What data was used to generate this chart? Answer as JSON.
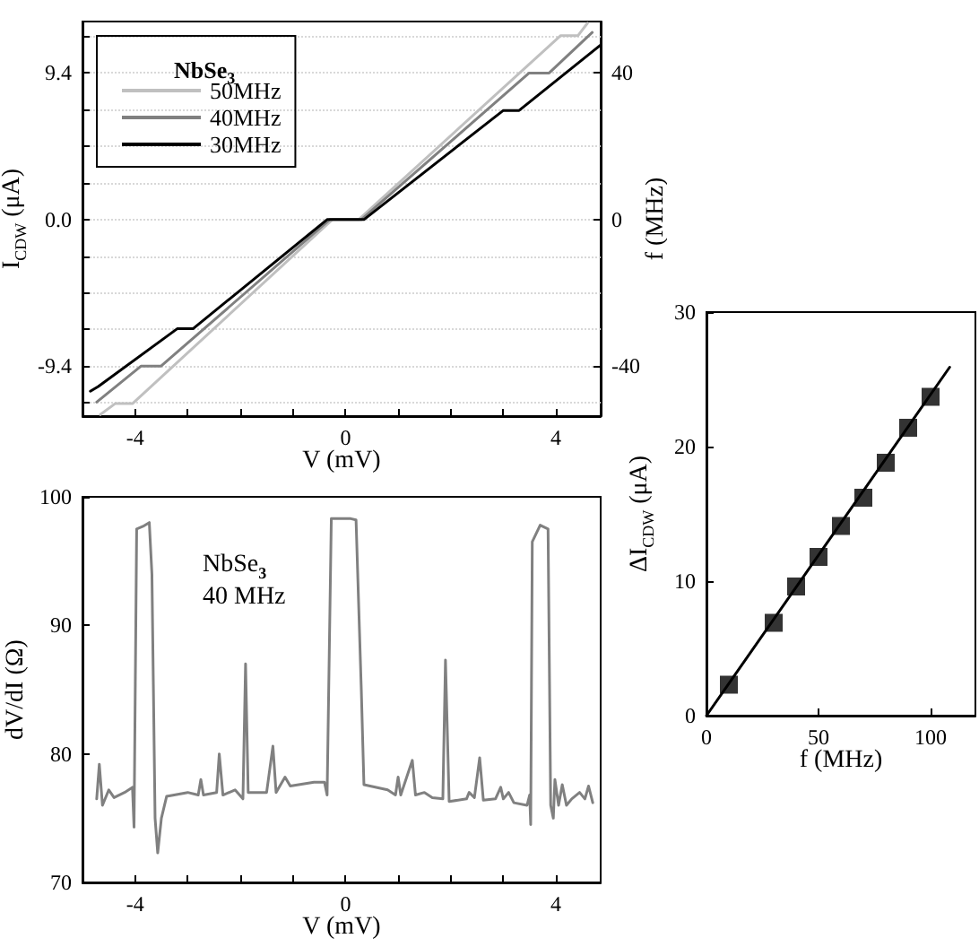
{
  "chart_data": [
    {
      "type": "line",
      "xlabel": "V (mV)",
      "ylabel": "I$_{CDW}$ (μA)",
      "y2label": "f (MHz)",
      "legend_title": "NbSe$_{3}$",
      "xlim": [
        -5,
        4.85
      ],
      "xticks": [
        -4,
        {
          "value": -3,
          "label": null
        },
        {
          "value": -2,
          "label": null
        },
        {
          "value": -1,
          "label": null
        },
        0,
        {
          "value": 1,
          "label": null
        },
        {
          "value": 2,
          "label": null
        },
        {
          "value": 3,
          "label": null
        },
        4
      ],
      "ylim": [
        -12.6,
        12.7
      ],
      "yticks": [
        {
          "value": -11.75,
          "label": null
        },
        -9.4,
        {
          "value": -7.05,
          "label": null
        },
        {
          "value": -4.7,
          "label": null
        },
        {
          "value": -2.35,
          "label": null
        },
        {
          "value": 0,
          "label": "0.0"
        },
        {
          "value": 2.35,
          "label": null
        },
        {
          "value": 4.7,
          "label": null
        },
        {
          "value": 7.05,
          "label": null
        },
        9.4,
        {
          "value": 11.75,
          "label": null
        }
      ],
      "y2lim": [
        -53.6,
        54.0
      ],
      "y2ticks": [
        -40,
        0,
        40
      ],
      "grid": "y",
      "legend": "top left",
      "marker": "none",
      "series": [
        {
          "name": "50MHz",
          "color": "#c0c0c0",
          "x": [
            -4.66,
            -4.38,
            -4.05,
            -0.25,
            0.25,
            4.09,
            4.42,
            4.6
          ],
          "values": [
            -12.5,
            -11.8,
            -11.8,
            0,
            0,
            11.8,
            11.8,
            12.6
          ]
        },
        {
          "name": "40MHz",
          "color": "#808080",
          "x": [
            -4.73,
            -3.89,
            -3.51,
            -0.3,
            0.3,
            3.49,
            3.87,
            4.69
          ],
          "values": [
            -11.7,
            -9.4,
            -9.4,
            0,
            0,
            9.4,
            9.4,
            12.0
          ]
        },
        {
          "name": "30MHz",
          "color": "#000000",
          "x": [
            -4.85,
            -4.7,
            -3.2,
            -2.9,
            -0.35,
            0.35,
            3.0,
            3.3,
            4.85
          ],
          "values": [
            -11.0,
            -10.7,
            -7.0,
            -7.0,
            0,
            0,
            7.0,
            7.0,
            11.2
          ]
        }
      ]
    },
    {
      "type": "line",
      "xlabel": "V (mV)",
      "ylabel": "dV/dI (Ω)",
      "annotations": [
        "NbSe$_{3}$",
        "40 MHz"
      ],
      "xlim": [
        -5,
        4.85
      ],
      "xticks": [
        -4,
        {
          "value": -3,
          "label": null
        },
        {
          "value": -2,
          "label": null
        },
        {
          "value": -1,
          "label": null
        },
        0,
        {
          "value": 1,
          "label": null
        },
        {
          "value": 2,
          "label": null
        },
        {
          "value": 3,
          "label": null
        },
        4
      ],
      "ylim": [
        70,
        100
      ],
      "yticks": [
        70,
        80,
        90,
        100
      ],
      "marker": "none",
      "series": [
        {
          "color": "#808080",
          "x": [
            -4.73,
            -4.68,
            -4.62,
            -4.5,
            -4.4,
            -4.2,
            -4.05,
            -4.02,
            -3.97,
            -3.85,
            -3.73,
            -3.68,
            -3.62,
            -3.57,
            -3.5,
            -3.4,
            -3.0,
            -2.8,
            -2.75,
            -2.7,
            -2.45,
            -2.4,
            -2.33,
            -2.1,
            -1.95,
            -1.9,
            -1.85,
            -1.5,
            -1.38,
            -1.32,
            -1.15,
            -1.05,
            -0.6,
            -0.4,
            -0.35,
            -0.27,
            0.1,
            0.2,
            0.3,
            0.35,
            0.8,
            0.95,
            1.0,
            1.05,
            1.27,
            1.33,
            1.5,
            1.65,
            1.85,
            1.9,
            1.97,
            2.3,
            2.35,
            2.45,
            2.55,
            2.62,
            2.85,
            2.95,
            3.0,
            3.1,
            3.2,
            3.45,
            3.5,
            3.52,
            3.55,
            3.7,
            3.85,
            3.9,
            3.95,
            3.98,
            4.05,
            4.12,
            4.2,
            4.3,
            4.45,
            4.55,
            4.62,
            4.7
          ],
          "values": [
            76.5,
            79.2,
            76.0,
            77.2,
            76.6,
            77.0,
            77.4,
            74.3,
            97.5,
            97.7,
            98.0,
            94.0,
            75.0,
            72.3,
            75.0,
            76.7,
            77.0,
            76.8,
            78.0,
            76.8,
            77.0,
            80.0,
            76.8,
            77.2,
            76.5,
            87.0,
            77.0,
            77.0,
            80.6,
            77.0,
            78.2,
            77.5,
            77.8,
            77.8,
            76.8,
            98.3,
            98.3,
            98.2,
            85.0,
            77.6,
            77.2,
            76.8,
            78.2,
            76.8,
            79.5,
            76.8,
            77.0,
            76.6,
            76.5,
            87.3,
            76.3,
            76.5,
            77.0,
            76.6,
            79.7,
            76.4,
            76.5,
            77.4,
            76.5,
            77.0,
            76.2,
            76.0,
            76.8,
            74.5,
            96.5,
            97.8,
            97.5,
            76.0,
            75.0,
            78.0,
            76.0,
            77.6,
            76.0,
            76.5,
            77.0,
            76.5,
            77.5,
            76.2
          ]
        }
      ]
    },
    {
      "type": "scatter",
      "xlabel": "f (MHz)",
      "ylabel": "ΔI$_{CDW}$ (μA)",
      "xlim": [
        0,
        120
      ],
      "xticks": [
        0,
        50,
        100
      ],
      "ylim": [
        0,
        30
      ],
      "yticks": [
        0,
        10,
        20,
        30
      ],
      "series": [
        {
          "marker": "square",
          "color": "#000000",
          "x": [
            10,
            30,
            40,
            50,
            60,
            70,
            80,
            90,
            100
          ],
          "values": [
            2.3,
            6.9,
            9.6,
            11.8,
            14.1,
            16.2,
            18.8,
            21.4,
            23.7
          ]
        },
        {
          "type": "line",
          "marker": "none",
          "color": "#000000",
          "x": [
            0,
            108.5
          ],
          "values": [
            0,
            25.9
          ]
        }
      ]
    }
  ]
}
